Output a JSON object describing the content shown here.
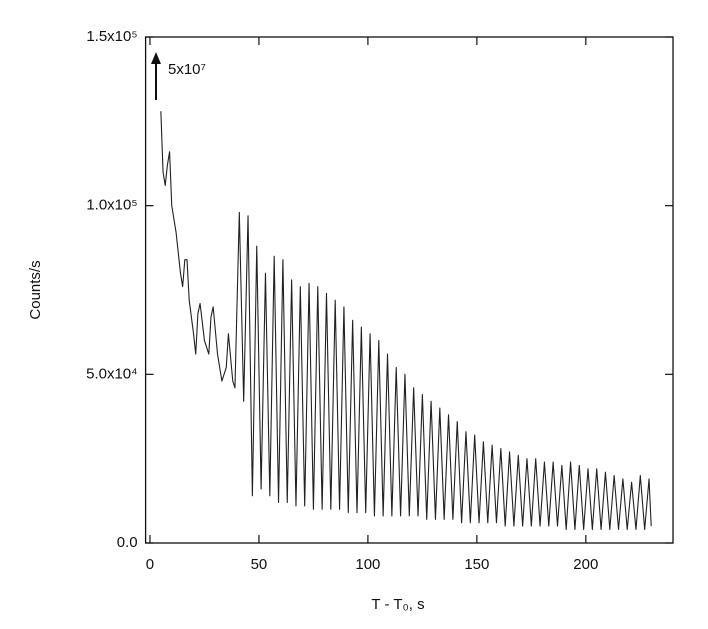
{
  "chart_data": {
    "type": "line",
    "x_label": "T - T₀, s",
    "y_label": "Counts/s",
    "annotation": "5x10⁷",
    "xlim": [
      -2,
      240
    ],
    "xticks": [
      0,
      50,
      100,
      150,
      200
    ],
    "ylim": [
      0,
      150000
    ],
    "yticks": [
      {
        "value": 0,
        "label": "0.0"
      },
      {
        "value": 50000,
        "label": "5.0x10⁴"
      },
      {
        "value": 100000,
        "label": "1.0x10⁵"
      },
      {
        "value": 150000,
        "label": "1.5x10⁵"
      }
    ],
    "series": [
      {
        "color": "#222222",
        "x": [
          5,
          6,
          7,
          8,
          9,
          10,
          12,
          14,
          15,
          16,
          17,
          18,
          20,
          21,
          22,
          23,
          25,
          27,
          28,
          29,
          31,
          33,
          35,
          36,
          38,
          39,
          41,
          43,
          45,
          47,
          49,
          51,
          53,
          55,
          57,
          59,
          61,
          63,
          65,
          67,
          69,
          71,
          73,
          75,
          77,
          79,
          81,
          83,
          85,
          87,
          89,
          91,
          93,
          95,
          97,
          99,
          101,
          103,
          105,
          107,
          109,
          111,
          113,
          115,
          117,
          119,
          121,
          123,
          125,
          127,
          129,
          131,
          133,
          135,
          137,
          139,
          141,
          143,
          145,
          147,
          149,
          151,
          153,
          155,
          157,
          159,
          161,
          163,
          165,
          167,
          169,
          171,
          173,
          175,
          177,
          179,
          181,
          183,
          185,
          187,
          189,
          191,
          193,
          195,
          197,
          199,
          201,
          203,
          205,
          207,
          209,
          211,
          213,
          215,
          217,
          219,
          221,
          223,
          225,
          227,
          229,
          230
        ],
        "values": [
          128000,
          110000,
          106000,
          112000,
          116000,
          100000,
          92000,
          80000,
          76000,
          84000,
          84000,
          72000,
          62000,
          56000,
          68000,
          71000,
          60000,
          56000,
          67000,
          70000,
          56000,
          48000,
          52000,
          62000,
          48000,
          46000,
          98000,
          42000,
          97000,
          14000,
          88000,
          16000,
          80000,
          14000,
          85000,
          12000,
          84000,
          12000,
          78000,
          11000,
          76000,
          11000,
          77000,
          10000,
          76000,
          10000,
          74000,
          10000,
          72000,
          10000,
          70000,
          9000,
          66000,
          9000,
          64000,
          9000,
          62000,
          8000,
          60000,
          8000,
          56000,
          8000,
          52000,
          8000,
          50000,
          8000,
          46000,
          8000,
          44000,
          7000,
          42000,
          7000,
          40000,
          7000,
          38000,
          7000,
          36000,
          6000,
          33000,
          6000,
          32000,
          6000,
          30000,
          6000,
          29000,
          6000,
          28000,
          5000,
          27000,
          5000,
          26000,
          5000,
          25000,
          5000,
          25000,
          5000,
          24000,
          5000,
          24000,
          5000,
          23000,
          4000,
          24000,
          4000,
          23000,
          4000,
          22000,
          4000,
          22000,
          4000,
          21000,
          4000,
          20000,
          4000,
          19000,
          4000,
          18000,
          4000,
          20000,
          4000,
          19000,
          5000
        ]
      }
    ]
  }
}
